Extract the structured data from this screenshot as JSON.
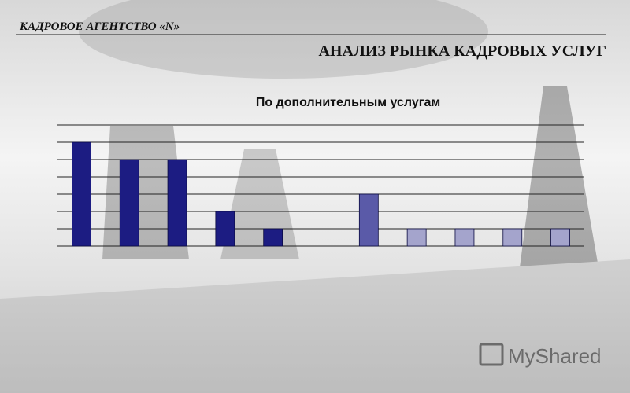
{
  "header": {
    "agency": "КАДРОВОЕ АГЕНТСТВО «N»",
    "title": "АНАЛИЗ РЫНКА КАДРОВЫХ УСЛУГ"
  },
  "watermark": "MyShared",
  "chart_data": {
    "type": "bar",
    "title": "По дополнительным услугам",
    "categories": [
      null,
      null,
      null,
      null,
      null,
      null,
      null,
      null,
      null,
      null,
      null
    ],
    "values": [
      6,
      5,
      5,
      2,
      1,
      0,
      3,
      1,
      1,
      1,
      1
    ],
    "colors": [
      "#1c1c82",
      "#1c1c82",
      "#1c1c82",
      "#1c1c82",
      "#1c1c82",
      "#1c1c82",
      "#5a5aa8",
      "#a4a4cc",
      "#a4a4cc",
      "#a4a4cc",
      "#a4a4cc"
    ],
    "ylim": [
      0,
      7
    ],
    "yticks": [
      0,
      1,
      2,
      3,
      4,
      5,
      6,
      7
    ],
    "grid": true
  }
}
